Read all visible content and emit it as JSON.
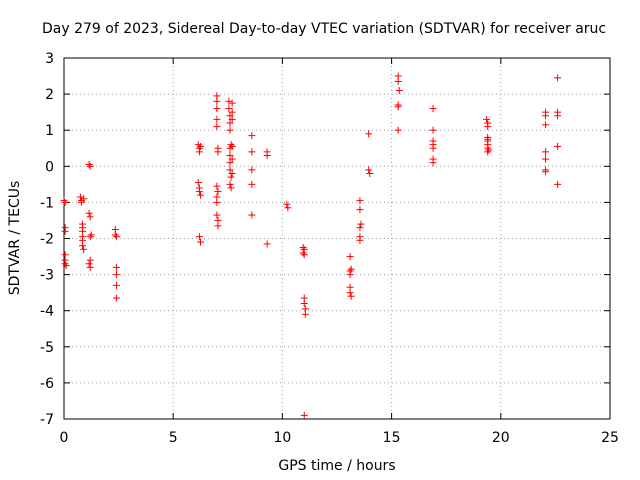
{
  "chart_data": {
    "type": "scatter",
    "title": "Day 279 of 2023, Sidereal Day-to-day VTEC variation (SDTVAR) for receiver aruc",
    "xlabel": "GPS time / hours",
    "ylabel": "SDTVAR / TECUs",
    "xlim": [
      0,
      25
    ],
    "ylim": [
      -7,
      3
    ],
    "xticks": [
      "0",
      "5",
      "10",
      "15",
      "20",
      "25"
    ],
    "yticks": [
      "-7",
      "-6",
      "-5",
      "-4",
      "-3",
      "-2",
      "-1",
      "0",
      "1",
      "2",
      "3"
    ],
    "grid": true,
    "marker": "+",
    "marker_color": "#ff0000",
    "series": [
      {
        "name": "SDTVAR",
        "points": [
          [
            0.0,
            -0.95
          ],
          [
            0.05,
            -1.0
          ],
          [
            0.05,
            -1.7
          ],
          [
            0.05,
            -1.8
          ],
          [
            0.05,
            -2.45
          ],
          [
            0.05,
            -2.6
          ],
          [
            0.05,
            -2.7
          ],
          [
            0.1,
            -2.75
          ],
          [
            0.75,
            -0.85
          ],
          [
            0.8,
            -0.95
          ],
          [
            0.8,
            -1.0
          ],
          [
            0.85,
            -1.6
          ],
          [
            0.85,
            -1.7
          ],
          [
            0.85,
            -1.8
          ],
          [
            0.85,
            -1.95
          ],
          [
            0.85,
            -2.05
          ],
          [
            0.85,
            -2.2
          ],
          [
            0.9,
            -2.3
          ],
          [
            0.9,
            -0.9
          ],
          [
            1.15,
            0.05
          ],
          [
            1.2,
            0.0
          ],
          [
            1.15,
            -1.3
          ],
          [
            1.2,
            -1.4
          ],
          [
            1.2,
            -1.95
          ],
          [
            1.2,
            -2.6
          ],
          [
            1.15,
            -2.7
          ],
          [
            1.2,
            -2.8
          ],
          [
            1.25,
            -1.9
          ],
          [
            2.35,
            -1.75
          ],
          [
            2.35,
            -1.9
          ],
          [
            2.4,
            -1.95
          ],
          [
            2.4,
            -2.8
          ],
          [
            2.4,
            -3.0
          ],
          [
            2.4,
            -3.3
          ],
          [
            2.4,
            -3.65
          ],
          [
            6.15,
            0.6
          ],
          [
            6.2,
            0.5
          ],
          [
            6.2,
            0.4
          ],
          [
            6.25,
            0.55
          ],
          [
            6.15,
            -0.45
          ],
          [
            6.2,
            -0.6
          ],
          [
            6.2,
            -0.7
          ],
          [
            6.25,
            -0.8
          ],
          [
            6.2,
            -1.95
          ],
          [
            6.25,
            -2.1
          ],
          [
            7.0,
            1.95
          ],
          [
            7.0,
            1.8
          ],
          [
            7.0,
            1.6
          ],
          [
            7.0,
            1.3
          ],
          [
            7.0,
            1.1
          ],
          [
            7.05,
            0.5
          ],
          [
            7.05,
            0.4
          ],
          [
            7.0,
            -0.55
          ],
          [
            7.05,
            -0.7
          ],
          [
            7.0,
            -0.85
          ],
          [
            7.0,
            -1.0
          ],
          [
            7.0,
            -1.35
          ],
          [
            7.05,
            -1.5
          ],
          [
            7.05,
            -1.65
          ],
          [
            7.55,
            1.8
          ],
          [
            7.55,
            1.6
          ],
          [
            7.6,
            1.4
          ],
          [
            7.6,
            1.2
          ],
          [
            7.6,
            1.0
          ],
          [
            7.65,
            0.6
          ],
          [
            7.6,
            0.5
          ],
          [
            7.6,
            0.3
          ],
          [
            7.6,
            0.1
          ],
          [
            7.6,
            -0.1
          ],
          [
            7.65,
            -0.3
          ],
          [
            7.6,
            -0.5
          ],
          [
            7.65,
            -0.6
          ],
          [
            7.7,
            1.75
          ],
          [
            7.7,
            1.5
          ],
          [
            7.7,
            1.3
          ],
          [
            7.7,
            0.55
          ],
          [
            7.7,
            0.2
          ],
          [
            7.7,
            -0.2
          ],
          [
            8.6,
            0.85
          ],
          [
            8.6,
            0.4
          ],
          [
            8.6,
            -0.1
          ],
          [
            8.6,
            -0.5
          ],
          [
            8.6,
            -1.35
          ],
          [
            9.3,
            0.4
          ],
          [
            9.3,
            0.3
          ],
          [
            9.3,
            -2.15
          ],
          [
            10.2,
            -1.05
          ],
          [
            10.25,
            -1.15
          ],
          [
            10.95,
            -2.25
          ],
          [
            10.95,
            -2.4
          ],
          [
            11.0,
            -2.3
          ],
          [
            11.0,
            -2.45
          ],
          [
            11.0,
            -3.65
          ],
          [
            11.0,
            -3.8
          ],
          [
            11.05,
            -3.95
          ],
          [
            11.05,
            -4.1
          ],
          [
            11.0,
            -6.9
          ],
          [
            13.1,
            -2.5
          ],
          [
            13.1,
            -2.9
          ],
          [
            13.1,
            -3.0
          ],
          [
            13.1,
            -3.35
          ],
          [
            13.1,
            -3.5
          ],
          [
            13.15,
            -3.6
          ],
          [
            13.15,
            -2.85
          ],
          [
            13.55,
            -0.95
          ],
          [
            13.55,
            -1.2
          ],
          [
            13.55,
            -1.7
          ],
          [
            13.55,
            -1.95
          ],
          [
            13.55,
            -2.05
          ],
          [
            13.6,
            -1.6
          ],
          [
            13.95,
            0.9
          ],
          [
            13.95,
            -0.1
          ],
          [
            14.0,
            -0.2
          ],
          [
            15.3,
            2.5
          ],
          [
            15.3,
            2.35
          ],
          [
            15.35,
            2.1
          ],
          [
            15.3,
            1.7
          ],
          [
            15.3,
            1.65
          ],
          [
            15.3,
            1.0
          ],
          [
            16.9,
            1.6
          ],
          [
            16.9,
            1.0
          ],
          [
            16.9,
            0.7
          ],
          [
            16.9,
            0.6
          ],
          [
            16.9,
            0.5
          ],
          [
            16.9,
            0.2
          ],
          [
            16.9,
            0.1
          ],
          [
            19.35,
            1.3
          ],
          [
            19.4,
            1.2
          ],
          [
            19.4,
            1.1
          ],
          [
            19.4,
            0.8
          ],
          [
            19.4,
            0.75
          ],
          [
            19.4,
            0.7
          ],
          [
            19.4,
            0.6
          ],
          [
            19.4,
            0.5
          ],
          [
            19.4,
            0.4
          ],
          [
            19.45,
            0.45
          ],
          [
            22.05,
            1.5
          ],
          [
            22.05,
            1.4
          ],
          [
            22.05,
            1.15
          ],
          [
            22.05,
            0.4
          ],
          [
            22.05,
            0.2
          ],
          [
            22.05,
            -0.1
          ],
          [
            22.05,
            -0.15
          ],
          [
            22.6,
            2.45
          ],
          [
            22.6,
            1.5
          ],
          [
            22.6,
            1.4
          ],
          [
            22.6,
            0.55
          ],
          [
            22.6,
            -0.5
          ]
        ]
      }
    ]
  }
}
